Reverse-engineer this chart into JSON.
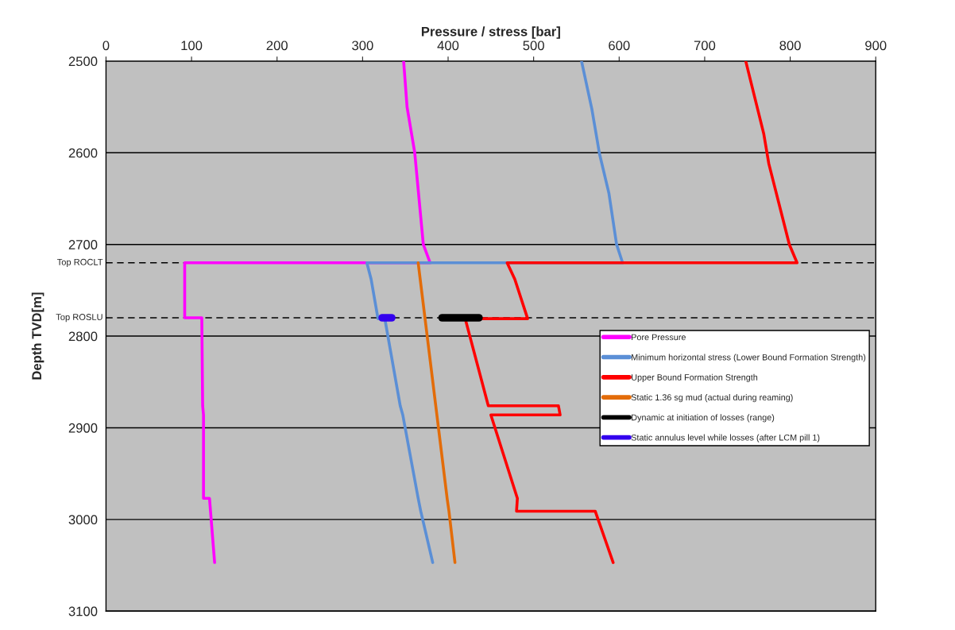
{
  "chart_data": {
    "type": "line",
    "xlabel": "Pressure / stress [bar]",
    "ylabel": "Depth TVD[m]",
    "xlim": [
      0,
      900
    ],
    "xticks": [
      0,
      100,
      200,
      300,
      400,
      500,
      600,
      700,
      800,
      900
    ],
    "ylim": [
      3100,
      2500
    ],
    "yticks": [
      2500,
      2600,
      2700,
      2800,
      2900,
      3000,
      3100
    ],
    "grid": "y",
    "legend": "right",
    "series": [
      {
        "name": "Pore Pressure",
        "color": "#ff00ff",
        "x": [
          348,
          352,
          361,
          371,
          379,
          92,
          92,
          112,
          113,
          114,
          114,
          121,
          127
        ],
        "values": [
          2500,
          2550,
          2600,
          2700,
          2720,
          2720,
          2780,
          2780,
          2876,
          2886,
          2977,
          2977,
          3047
        ]
      },
      {
        "name": "Minimum horizontal stress (Lower Bound Formation Strength)",
        "color": "#5b8fd6",
        "x": [
          556,
          568,
          577,
          588,
          597,
          604,
          305,
          310,
          318,
          326,
          344,
          347,
          365,
          368,
          382
        ],
        "values": [
          2500,
          2552,
          2601,
          2644,
          2700,
          2720,
          2720,
          2738,
          2781,
          2781,
          2876,
          2886,
          2977,
          2991,
          3047
        ]
      },
      {
        "name": "Upper Bound Formation Strength",
        "color": "#ff0000",
        "x": [
          748,
          769,
          775,
          799,
          808,
          469,
          478,
          493,
          420,
          447,
          529,
          531,
          450,
          481,
          480,
          572,
          593
        ],
        "values": [
          2500,
          2579,
          2612,
          2700,
          2720,
          2720,
          2738,
          2781,
          2781,
          2876,
          2876,
          2886,
          2886,
          2977,
          2991,
          2991,
          3047
        ]
      },
      {
        "name": "Static 1.36 sg mud (actual during reaming)",
        "color": "#e36c09",
        "x": [
          365,
          399,
          401,
          408
        ],
        "values": [
          2720,
          2978,
          2991,
          3047
        ]
      },
      {
        "name": "Dynamic at initiation of losses (range)",
        "color": "#000000",
        "x": [
          393,
          436
        ],
        "values": [
          2780,
          2780
        ]
      },
      {
        "name": "Static annulus level while losses (after LCM pill 1)",
        "color": "#3300ee",
        "x": [
          323,
          334
        ],
        "values": [
          2780,
          2780
        ]
      }
    ],
    "ref_lines": [
      {
        "axis": "y",
        "value": 2720,
        "label": "Top ROCLT",
        "line_style": "dashed",
        "color": "#000000"
      },
      {
        "axis": "y",
        "value": 2780,
        "label": "Top ROSLU",
        "line_style": "dashed",
        "color": "#000000"
      }
    ]
  }
}
